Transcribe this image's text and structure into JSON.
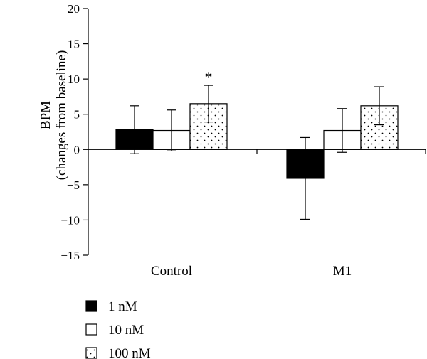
{
  "chart_data": {
    "type": "bar",
    "ylabel_lines": [
      "BPM",
      "(changes from baseline)"
    ],
    "ylim": [
      -15,
      20
    ],
    "yticks": [
      {
        "value": 20,
        "label": "20"
      },
      {
        "value": 15,
        "label": "15"
      },
      {
        "value": 10,
        "label": "10"
      },
      {
        "value": 5,
        "label": "5"
      },
      {
        "value": 0,
        "label": "0"
      },
      {
        "value": -5,
        "label": "−5"
      },
      {
        "value": -10,
        "label": "−10"
      },
      {
        "value": -15,
        "label": "−15"
      }
    ],
    "categories": [
      "Control",
      "M1"
    ],
    "series": [
      {
        "name": "1 nM",
        "fill": "solid",
        "color": "#000000",
        "values": [
          2.8,
          -4.1
        ],
        "errors": [
          3.4,
          5.8
        ]
      },
      {
        "name": "10 nM",
        "fill": "white",
        "color": "#ffffff",
        "values": [
          2.7,
          2.7
        ],
        "errors": [
          2.9,
          3.1
        ]
      },
      {
        "name": "100 nM",
        "fill": "dotted",
        "color": "#ffffff",
        "values": [
          6.5,
          6.2
        ],
        "errors": [
          2.6,
          2.7
        ]
      }
    ],
    "annotations": [
      {
        "category_index": 0,
        "series_index": 2,
        "text": "*"
      }
    ],
    "grid": false,
    "legend_position": "bottom-left"
  }
}
